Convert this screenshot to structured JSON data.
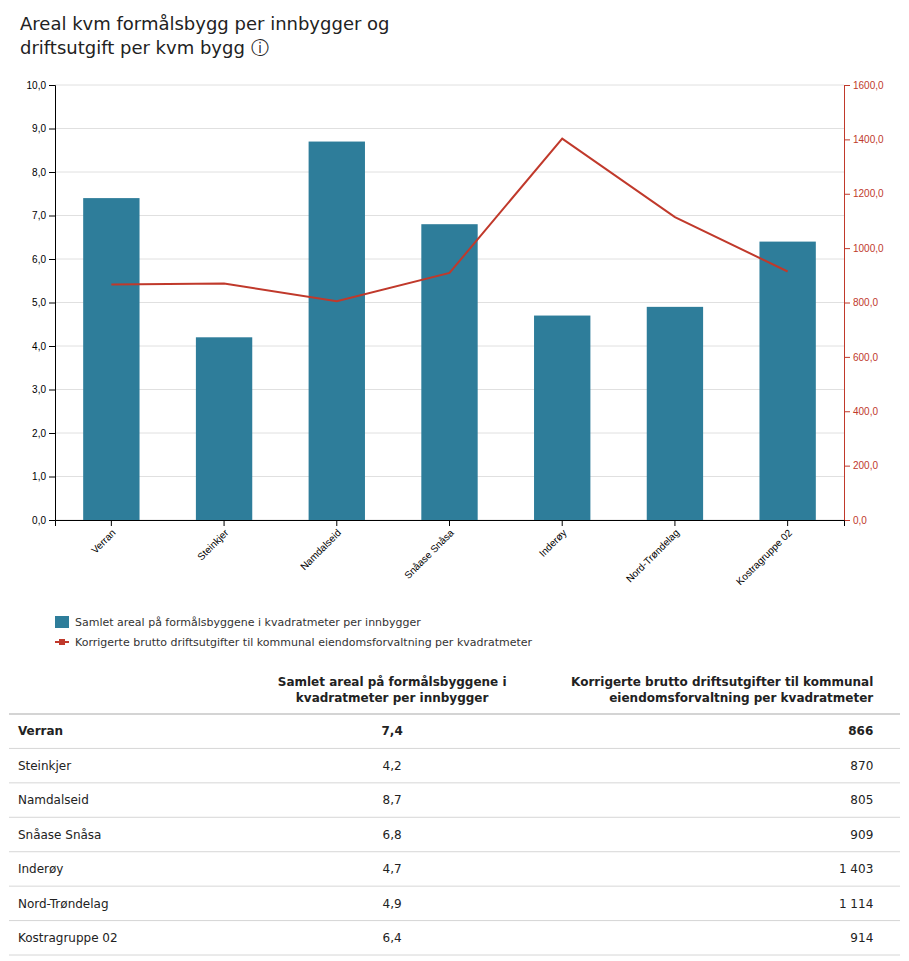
{
  "chart_data": {
    "type": "bar",
    "title": "Areal kvm formålsbygg per innbygger og\ndriftsutgift per kvm bygg  ⓘ",
    "categories": [
      "Verran",
      "Steinkjer",
      "Namdalseid",
      "Snåase Snåsa",
      "Inderøy",
      "Nord-Trøndelag",
      "Kostragruppe 02"
    ],
    "series": [
      {
        "name": "Samlet areal på formålsbyggene i kvadratmeter per innbygger",
        "type": "bar",
        "color": "#2e7d9a",
        "values": [
          7.4,
          4.2,
          8.7,
          6.8,
          4.7,
          4.9,
          6.4
        ]
      },
      {
        "name": "Korrigerte brutto driftsutgifter til kommunal eiendomsforvaltning per kvadratmeter",
        "type": "line",
        "axis": "y2",
        "color": "#c0392b",
        "values": [
          866,
          870,
          805,
          909,
          1403,
          1114,
          914
        ]
      }
    ],
    "ylim": [
      0,
      10
    ],
    "yticks": [
      {
        "value": 0,
        "label": "0,0"
      },
      {
        "value": 1,
        "label": "1,0"
      },
      {
        "value": 2,
        "label": "2,0"
      },
      {
        "value": 3,
        "label": "3,0"
      },
      {
        "value": 4,
        "label": "4,0"
      },
      {
        "value": 5,
        "label": "5,0"
      },
      {
        "value": 6,
        "label": "6,0"
      },
      {
        "value": 7,
        "label": "7,0"
      },
      {
        "value": 8,
        "label": "8,0"
      },
      {
        "value": 9,
        "label": "9,0"
      },
      {
        "value": 10,
        "label": "10,0"
      }
    ],
    "y2lim": [
      0,
      1600
    ],
    "y2ticks": [
      {
        "value": 0,
        "label": "0,0"
      },
      {
        "value": 200,
        "label": "200,0"
      },
      {
        "value": 400,
        "label": "400,0"
      },
      {
        "value": 600,
        "label": "600,0"
      },
      {
        "value": 800,
        "label": "800,0"
      },
      {
        "value": 1000,
        "label": "1000,0"
      },
      {
        "value": 1200,
        "label": "1200,0"
      },
      {
        "value": 1400,
        "label": "1400,0"
      },
      {
        "value": 1600,
        "label": "1600,0"
      }
    ],
    "grid": true,
    "legend": "bottom",
    "table": {
      "headers": [
        "Samlet areal på formålsbyggene i\nkvadratmeter per innbygger",
        "Korrigerte brutto driftsutgifter til kommunal\neiendomsforvaltning per kvadratmeter"
      ],
      "columns": [
        [
          "7,4",
          "4,2",
          "8,7",
          "6,8",
          "4,7",
          "4,9",
          "6,4"
        ],
        [
          "866",
          "870",
          "805",
          "909",
          "1 403",
          "1 114",
          "914"
        ]
      ],
      "bold_row": 0
    }
  }
}
